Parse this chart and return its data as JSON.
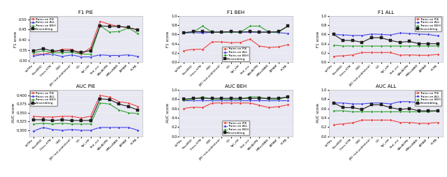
{
  "x_labels": [
    "VoTMe",
    "PoseBSD",
    "Cross-STM",
    "CBD",
    "JBD (not published)",
    "GD",
    "Spl_old",
    "StoI_est",
    "SAtrAOPN",
    "MMesWAN",
    "ATPAM",
    "PCPA"
  ],
  "colors": {
    "PIE": "#e84040",
    "ALL": "#4040e8",
    "BEH": "#30a030",
    "Ensembling": "#202020"
  },
  "legend_labels": [
    "Trains on PIE",
    "Trains on ALL",
    "Trains on BEH",
    "Ensembling"
  ],
  "f1_pie": {
    "PIE": [
      0.33,
      0.332,
      0.34,
      0.355,
      0.355,
      0.33,
      0.363,
      0.49,
      0.475,
      0.465,
      0.46,
      0.448
    ],
    "ALL": [
      0.322,
      0.33,
      0.33,
      0.32,
      0.328,
      0.318,
      0.318,
      0.328,
      0.325,
      0.325,
      0.328,
      0.32
    ],
    "BEH": [
      0.338,
      0.348,
      0.338,
      0.338,
      0.34,
      0.332,
      0.33,
      0.468,
      0.438,
      0.44,
      0.458,
      0.43
    ],
    "Ensembling": [
      0.348,
      0.358,
      0.346,
      0.348,
      0.348,
      0.34,
      0.348,
      0.468,
      0.465,
      0.465,
      0.46,
      0.448
    ]
  },
  "f1_beh": {
    "PIE": [
      0.25,
      0.28,
      0.28,
      0.44,
      0.44,
      0.42,
      0.43,
      0.5,
      0.35,
      0.32,
      0.33,
      0.38
    ],
    "ALL": [
      0.63,
      0.64,
      0.63,
      0.65,
      0.65,
      0.65,
      0.65,
      0.65,
      0.65,
      0.65,
      0.64,
      0.62
    ],
    "BEH": [
      0.64,
      0.65,
      0.78,
      0.65,
      0.65,
      0.65,
      0.65,
      0.78,
      0.78,
      0.65,
      0.65,
      0.78
    ],
    "Ensembling": [
      0.64,
      0.66,
      0.66,
      0.65,
      0.65,
      0.66,
      0.65,
      0.66,
      0.65,
      0.65,
      0.66,
      0.78
    ]
  },
  "f1_all": {
    "PIE": [
      0.13,
      0.14,
      0.16,
      0.21,
      0.21,
      0.21,
      0.21,
      0.15,
      0.16,
      0.15,
      0.15,
      0.17
    ],
    "ALL": [
      0.6,
      0.59,
      0.58,
      0.58,
      0.61,
      0.6,
      0.59,
      0.63,
      0.62,
      0.61,
      0.6,
      0.57
    ],
    "BEH": [
      0.37,
      0.35,
      0.35,
      0.35,
      0.35,
      0.35,
      0.35,
      0.35,
      0.35,
      0.35,
      0.35,
      0.35
    ],
    "Ensembling": [
      0.6,
      0.47,
      0.47,
      0.43,
      0.53,
      0.53,
      0.47,
      0.43,
      0.45,
      0.4,
      0.4,
      0.4
    ]
  },
  "auc_pie": {
    "PIE": [
      0.34,
      0.338,
      0.338,
      0.34,
      0.34,
      0.335,
      0.34,
      0.4,
      0.395,
      0.382,
      0.378,
      0.368
    ],
    "ALL": [
      0.298,
      0.308,
      0.302,
      0.3,
      0.302,
      0.3,
      0.3,
      0.308,
      0.308,
      0.308,
      0.308,
      0.3
    ],
    "BEH": [
      0.318,
      0.32,
      0.318,
      0.32,
      0.318,
      0.318,
      0.318,
      0.378,
      0.375,
      0.358,
      0.35,
      0.348
    ],
    "Ensembling": [
      0.33,
      0.33,
      0.328,
      0.33,
      0.328,
      0.328,
      0.328,
      0.39,
      0.388,
      0.375,
      0.368,
      0.358
    ]
  },
  "auc_beh": {
    "PIE": [
      0.6,
      0.63,
      0.62,
      0.72,
      0.72,
      0.72,
      0.72,
      0.72,
      0.67,
      0.62,
      0.64,
      0.68
    ],
    "ALL": [
      0.78,
      0.78,
      0.78,
      0.78,
      0.78,
      0.78,
      0.78,
      0.78,
      0.78,
      0.78,
      0.78,
      0.78
    ],
    "BEH": [
      0.78,
      0.8,
      0.85,
      0.8,
      0.8,
      0.8,
      0.8,
      0.85,
      0.85,
      0.8,
      0.8,
      0.85
    ],
    "Ensembling": [
      0.8,
      0.82,
      0.82,
      0.82,
      0.82,
      0.82,
      0.82,
      0.82,
      0.82,
      0.82,
      0.82,
      0.85
    ]
  },
  "auc_all": {
    "PIE": [
      0.25,
      0.27,
      0.29,
      0.35,
      0.35,
      0.35,
      0.35,
      0.3,
      0.3,
      0.28,
      0.28,
      0.3
    ],
    "ALL": [
      0.72,
      0.72,
      0.7,
      0.7,
      0.72,
      0.72,
      0.7,
      0.75,
      0.75,
      0.72,
      0.72,
      0.7
    ],
    "BEH": [
      0.55,
      0.55,
      0.53,
      0.53,
      0.53,
      0.53,
      0.53,
      0.53,
      0.53,
      0.53,
      0.53,
      0.55
    ],
    "Ensembling": [
      0.72,
      0.62,
      0.62,
      0.58,
      0.68,
      0.68,
      0.62,
      0.58,
      0.6,
      0.55,
      0.55,
      0.55
    ]
  },
  "bg_color": "#e8e8f2",
  "fig_bg": "#ffffff",
  "marker_size": 2.5,
  "line_width": 0.8,
  "subplot_configs": [
    {
      "title": "F1 PIE",
      "data_key": "f1_pie",
      "row": 0,
      "col": 0,
      "legend_loc": "upper left",
      "ylabel": "F1 score",
      "ylim": [
        0.3,
        0.52
      ]
    },
    {
      "title": "F1 BEH",
      "data_key": "f1_beh",
      "row": 0,
      "col": 1,
      "legend_loc": "lower center",
      "ylabel": "F1 score",
      "ylim": [
        0.0,
        1.0
      ]
    },
    {
      "title": "F1 ALL",
      "data_key": "f1_all",
      "row": 0,
      "col": 2,
      "legend_loc": "upper right",
      "ylabel": "F1 score",
      "ylim": [
        0.0,
        1.0
      ]
    },
    {
      "title": "AUC PIE",
      "data_key": "auc_pie",
      "row": 1,
      "col": 0,
      "legend_loc": "upper left",
      "ylabel": "AUC score",
      "ylim": [
        0.28,
        0.42
      ]
    },
    {
      "title": "AUC BEH",
      "data_key": "auc_beh",
      "row": 1,
      "col": 1,
      "legend_loc": "lower center",
      "ylabel": "AUC score",
      "ylim": [
        0.0,
        1.0
      ]
    },
    {
      "title": "AUC ALL",
      "data_key": "auc_all",
      "row": 1,
      "col": 2,
      "legend_loc": "upper right",
      "ylabel": "AUC score",
      "ylim": [
        0.0,
        1.0
      ]
    }
  ]
}
